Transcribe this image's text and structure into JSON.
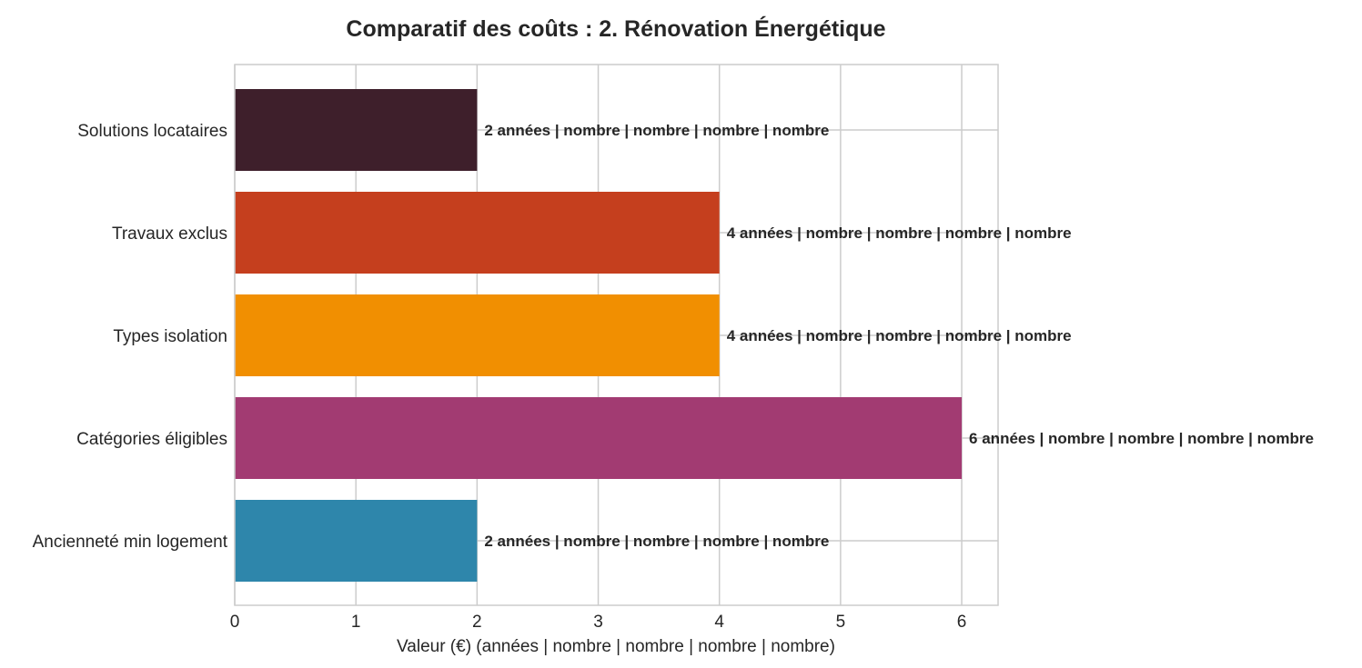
{
  "chart_data": {
    "type": "bar",
    "orientation": "horizontal",
    "title": "Comparatif des coûts : 2. Rénovation Énergétique",
    "xlabel": "Valeur (€) (années | nombre | nombre | nombre | nombre)",
    "ylabel": "",
    "xlim": [
      0,
      6.3
    ],
    "x_ticks": [
      "0",
      "1",
      "2",
      "3",
      "4",
      "5",
      "6"
    ],
    "grid": true,
    "categories": [
      "Solutions locataires",
      "Travaux exclus",
      "Types isolation",
      "Catégories éligibles",
      "Ancienneté min logement"
    ],
    "values": [
      2,
      4,
      4,
      6,
      2
    ],
    "colors": [
      "#3e1f2b",
      "#c53f1e",
      "#f18f01",
      "#a23b72",
      "#2e86ab"
    ],
    "data_labels": [
      "2 années | nombre | nombre | nombre | nombre",
      "4 années | nombre | nombre | nombre | nombre",
      "4 années | nombre | nombre | nombre | nombre",
      "6 années | nombre | nombre | nombre | nombre",
      "2 années | nombre | nombre | nombre | nombre"
    ]
  }
}
